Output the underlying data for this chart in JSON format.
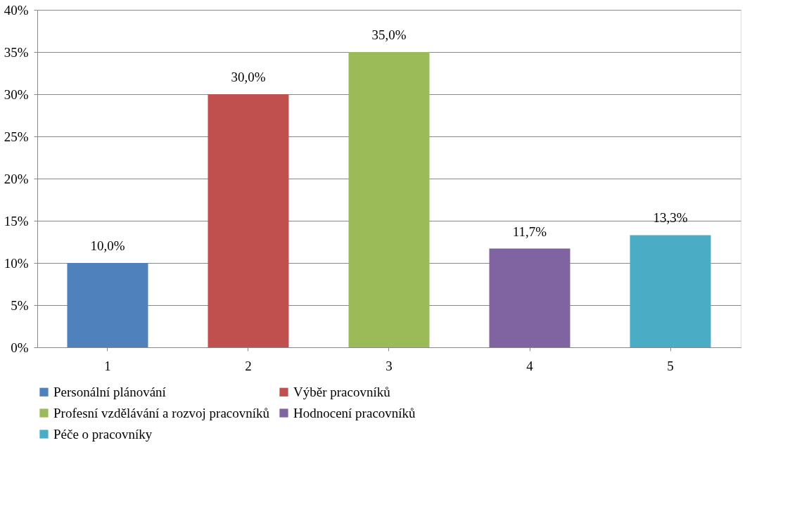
{
  "chart_data": {
    "type": "bar",
    "categories": [
      "1",
      "2",
      "3",
      "4",
      "5"
    ],
    "series": [
      {
        "name": "Personální plánování",
        "color": "#4f81bd",
        "values": [
          10.0,
          null,
          null,
          null,
          null
        ],
        "value_labels": [
          "10,0%",
          null,
          null,
          null,
          null
        ]
      },
      {
        "name": "Výběr pracovníků",
        "color": "#c0504d",
        "values": [
          null,
          30.0,
          null,
          null,
          null
        ],
        "value_labels": [
          null,
          "30,0%",
          null,
          null,
          null
        ]
      },
      {
        "name": "Profesní vzdělávání a rozvoj pracovníků",
        "color": "#9bbb59",
        "values": [
          null,
          null,
          35.0,
          null,
          null
        ],
        "value_labels": [
          null,
          null,
          "35,0%",
          null,
          null
        ]
      },
      {
        "name": "Hodnocení pracovníků",
        "color": "#8064a2",
        "values": [
          null,
          null,
          null,
          11.7,
          null
        ],
        "value_labels": [
          null,
          null,
          null,
          "11,7%",
          null
        ]
      },
      {
        "name": "Péče o pracovníky",
        "color": "#4bacc6",
        "values": [
          null,
          null,
          null,
          null,
          13.3
        ],
        "value_labels": [
          null,
          null,
          null,
          null,
          "13,3%"
        ]
      }
    ],
    "ylim": [
      0,
      40
    ],
    "yticks": [
      {
        "value": 0,
        "label": "0%"
      },
      {
        "value": 5,
        "label": "5%"
      },
      {
        "value": 10,
        "label": "10%"
      },
      {
        "value": 15,
        "label": "15%"
      },
      {
        "value": 20,
        "label": "20%"
      },
      {
        "value": 25,
        "label": "25%"
      },
      {
        "value": 30,
        "label": "30%"
      },
      {
        "value": 35,
        "label": "35%"
      },
      {
        "value": 40,
        "label": "40%"
      }
    ],
    "grid": "y",
    "legend": "bottom"
  }
}
